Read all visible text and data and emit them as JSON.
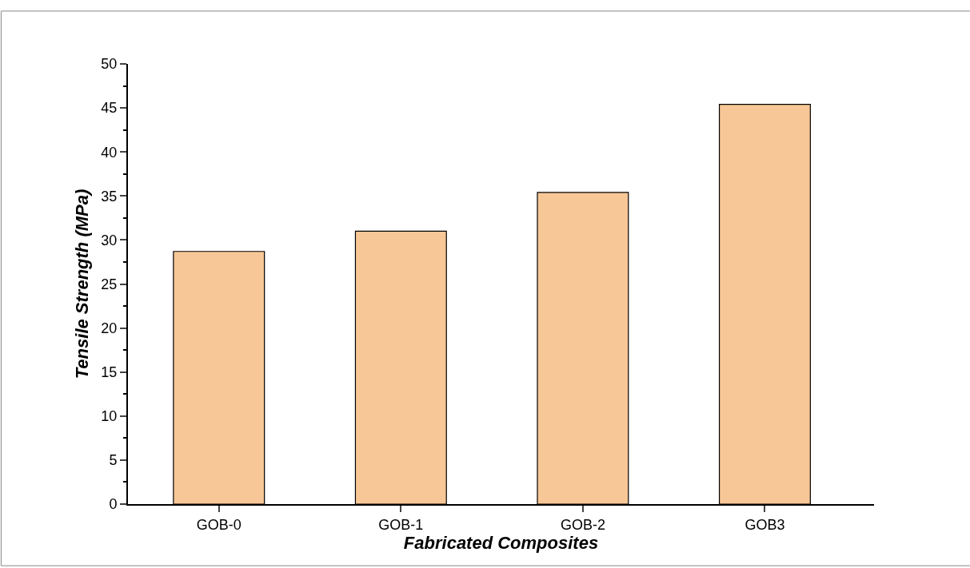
{
  "chart_data": {
    "type": "bar",
    "xlabel": "Fabricated Composites",
    "ylabel": "Tensile Strength (MPa)",
    "categories": [
      "GOB-0",
      "GOB-1",
      "GOB-2",
      "GOB3"
    ],
    "values": [
      28.7,
      31.0,
      35.4,
      45.4
    ],
    "color": "#f8c797",
    "ylim": [
      0,
      50
    ],
    "yticks": [
      0,
      5,
      10,
      15,
      20,
      25,
      30,
      35,
      40,
      45,
      50
    ]
  }
}
